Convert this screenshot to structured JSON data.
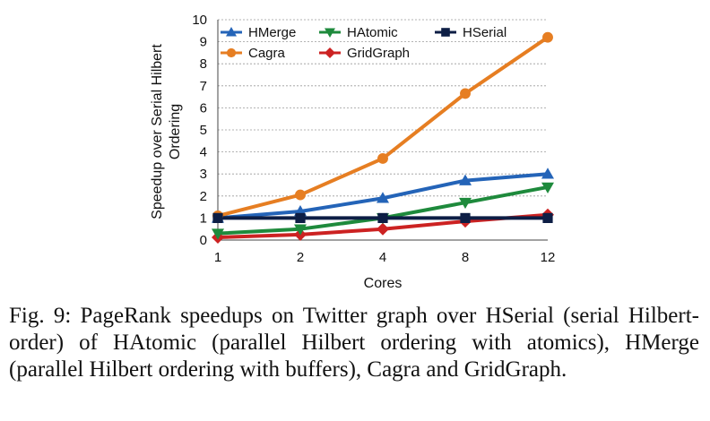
{
  "chart_data": {
    "type": "line",
    "categories": [
      "1",
      "2",
      "4",
      "8",
      "12"
    ],
    "xlabel": "Cores",
    "ylabel": "Speedup over Serial Hilbert Ordering",
    "ylabel_lines": [
      "Speedup over Serial Hilbert",
      "Ordering"
    ],
    "ylim": [
      0,
      10
    ],
    "yticks": [
      "0",
      "1",
      "2",
      "3",
      "4",
      "5",
      "6",
      "7",
      "8",
      "9",
      "10"
    ],
    "grid": true,
    "legend_position": "top",
    "series": [
      {
        "name": "HMerge",
        "color": "#2464b8",
        "marker": "triangle-up",
        "values": [
          1.0,
          1.3,
          1.9,
          2.7,
          3.0
        ]
      },
      {
        "name": "HAtomic",
        "color": "#1e8a3c",
        "marker": "triangle-down",
        "values": [
          0.3,
          0.5,
          1.0,
          1.7,
          2.4
        ]
      },
      {
        "name": "HSerial",
        "color": "#0d1e45",
        "marker": "square",
        "values": [
          1.0,
          1.0,
          1.0,
          1.0,
          1.0
        ]
      },
      {
        "name": "Cagra",
        "color": "#e67e22",
        "marker": "circle",
        "values": [
          1.1,
          2.05,
          3.7,
          6.65,
          9.2
        ]
      },
      {
        "name": "GridGraph",
        "color": "#cc2222",
        "marker": "diamond",
        "values": [
          0.12,
          0.25,
          0.5,
          0.85,
          1.15
        ]
      }
    ]
  },
  "caption": "Fig. 9: PageRank speedups on Twitter graph over HSerial (serial Hilbert-order) of HAtomic (parallel Hilbert ordering with atomics), HMerge (parallel Hilbert ordering with buffers), Cagra and GridGraph."
}
